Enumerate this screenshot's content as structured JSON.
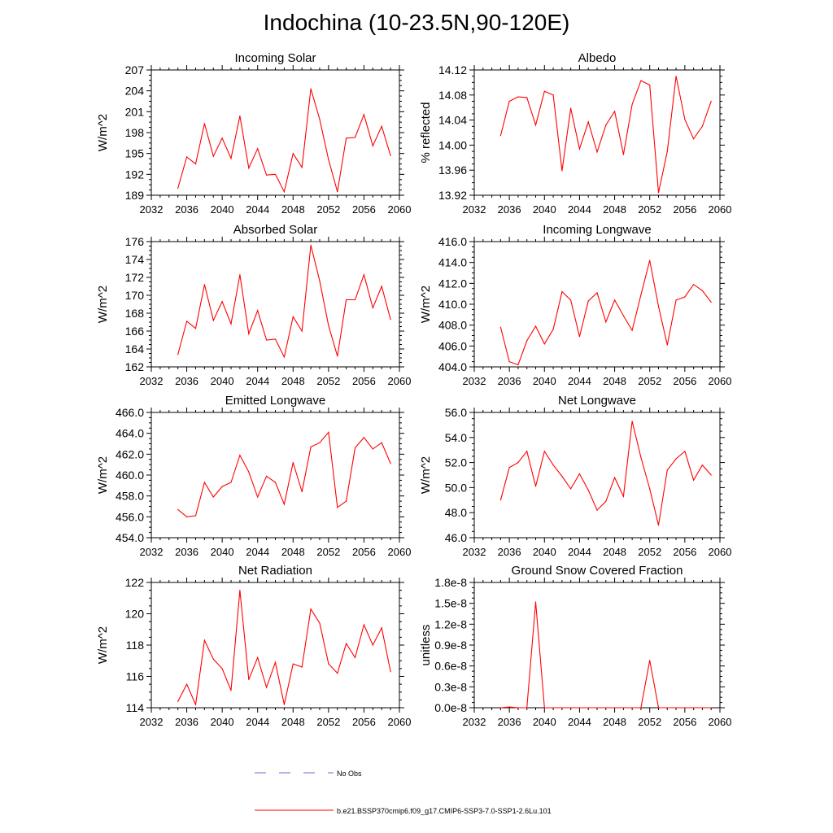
{
  "title": "Indochina (10-23.5N,90-120E)",
  "series_color": "#ff0000",
  "legend": {
    "entries": [
      {
        "label": "No Obs",
        "style": "dashed",
        "color": "#6b6bd0"
      },
      {
        "label": "b.e21.BSSP370cmip6.f09_g17.CMIP6-SSP3-7.0-SSP1-2.6Lu.101",
        "style": "solid",
        "color": "#ff0000"
      }
    ]
  },
  "chart_data": [
    {
      "type": "line",
      "title": "Incoming Solar",
      "ylabel": "W/m^2",
      "xlim": [
        2032,
        2060
      ],
      "ylim": [
        189,
        207
      ],
      "xticks": [
        "2032",
        "2036",
        "2040",
        "2044",
        "2048",
        "2052",
        "2056",
        "2060"
      ],
      "yticks": [
        "189",
        "192",
        "195",
        "198",
        "201",
        "204",
        "207"
      ],
      "x": [
        2035,
        2036,
        2037,
        2038,
        2039,
        2040,
        2041,
        2042,
        2043,
        2044,
        2045,
        2046,
        2047,
        2048,
        2049,
        2050,
        2051,
        2052,
        2053,
        2054,
        2055,
        2056,
        2057,
        2058,
        2059
      ],
      "series": [
        {
          "values": [
            190.0,
            194.5,
            193.5,
            199.3,
            194.6,
            197.2,
            194.3,
            200.4,
            192.9,
            195.7,
            191.9,
            192.0,
            189.5,
            195.0,
            193.0,
            204.3,
            199.9,
            194.1,
            189.5,
            197.2,
            197.3,
            200.6,
            196.1,
            198.9,
            194.7
          ]
        }
      ]
    },
    {
      "type": "line",
      "title": "Albedo",
      "ylabel": "% reflected",
      "xlim": [
        2032,
        2060
      ],
      "ylim": [
        13.92,
        14.12
      ],
      "xticks": [
        "2032",
        "2036",
        "2040",
        "2044",
        "2048",
        "2052",
        "2056",
        "2060"
      ],
      "yticks": [
        "13.92",
        "13.96",
        "14.00",
        "14.04",
        "14.08",
        "14.12"
      ],
      "x": [
        2035,
        2036,
        2037,
        2038,
        2039,
        2040,
        2041,
        2042,
        2043,
        2044,
        2045,
        2046,
        2047,
        2048,
        2049,
        2050,
        2051,
        2052,
        2053,
        2054,
        2055,
        2056,
        2057,
        2058,
        2059
      ],
      "series": [
        {
          "values": [
            14.015,
            14.07,
            14.077,
            14.076,
            14.032,
            14.086,
            14.08,
            13.959,
            14.059,
            13.994,
            14.037,
            13.989,
            14.032,
            14.054,
            13.985,
            14.065,
            14.103,
            14.096,
            13.924,
            13.99,
            14.11,
            14.041,
            14.01,
            14.03,
            14.07
          ]
        }
      ]
    },
    {
      "type": "line",
      "title": "Absorbed Solar",
      "ylabel": "W/m^2",
      "xlim": [
        2032,
        2060
      ],
      "ylim": [
        162,
        176
      ],
      "xticks": [
        "2032",
        "2036",
        "2040",
        "2044",
        "2048",
        "2052",
        "2056",
        "2060"
      ],
      "yticks": [
        "162",
        "164",
        "166",
        "168",
        "170",
        "172",
        "174",
        "176"
      ],
      "x": [
        2035,
        2036,
        2037,
        2038,
        2039,
        2040,
        2041,
        2042,
        2043,
        2044,
        2045,
        2046,
        2047,
        2048,
        2049,
        2050,
        2051,
        2052,
        2053,
        2054,
        2055,
        2056,
        2057,
        2058,
        2059
      ],
      "series": [
        {
          "values": [
            163.4,
            167.1,
            166.3,
            171.2,
            167.2,
            169.3,
            166.8,
            172.3,
            165.7,
            168.3,
            165.0,
            165.1,
            163.1,
            167.6,
            166.0,
            175.6,
            171.6,
            166.6,
            163.2,
            169.5,
            169.5,
            172.3,
            168.6,
            171.0,
            167.3
          ]
        }
      ]
    },
    {
      "type": "line",
      "title": "Incoming Longwave",
      "ylabel": "W/m^2",
      "xlim": [
        2032,
        2060
      ],
      "ylim": [
        404,
        416
      ],
      "xticks": [
        "2032",
        "2036",
        "2040",
        "2044",
        "2048",
        "2052",
        "2056",
        "2060"
      ],
      "yticks": [
        "404.0",
        "406.0",
        "408.0",
        "410.0",
        "412.0",
        "414.0",
        "416.0"
      ],
      "x": [
        2035,
        2036,
        2037,
        2038,
        2039,
        2040,
        2041,
        2042,
        2043,
        2044,
        2045,
        2046,
        2047,
        2048,
        2049,
        2050,
        2051,
        2052,
        2053,
        2054,
        2055,
        2056,
        2057,
        2058,
        2059
      ],
      "series": [
        {
          "values": [
            407.8,
            404.5,
            404.2,
            406.5,
            407.9,
            406.2,
            407.6,
            411.2,
            410.4,
            406.9,
            410.3,
            411.1,
            408.3,
            410.4,
            408.9,
            407.5,
            410.9,
            414.2,
            409.8,
            406.1,
            410.4,
            410.7,
            411.9,
            411.3,
            410.2
          ]
        }
      ]
    },
    {
      "type": "line",
      "title": "Emitted Longwave",
      "ylabel": "W/m^2",
      "xlim": [
        2032,
        2060
      ],
      "ylim": [
        454,
        466
      ],
      "xticks": [
        "2032",
        "2036",
        "2040",
        "2044",
        "2048",
        "2052",
        "2056",
        "2060"
      ],
      "yticks": [
        "454.0",
        "456.0",
        "458.0",
        "460.0",
        "462.0",
        "464.0",
        "466.0"
      ],
      "x": [
        2035,
        2036,
        2037,
        2038,
        2039,
        2040,
        2041,
        2042,
        2043,
        2044,
        2045,
        2046,
        2047,
        2048,
        2049,
        2050,
        2051,
        2052,
        2053,
        2054,
        2055,
        2056,
        2057,
        2058,
        2059
      ],
      "series": [
        {
          "values": [
            456.7,
            456.0,
            456.1,
            459.3,
            457.9,
            458.9,
            459.3,
            461.9,
            460.3,
            457.9,
            459.9,
            459.3,
            457.2,
            461.2,
            458.4,
            462.7,
            463.1,
            464.1,
            456.9,
            457.5,
            462.6,
            463.6,
            462.5,
            463.1,
            461.1
          ]
        }
      ]
    },
    {
      "type": "line",
      "title": "Net Longwave",
      "ylabel": "W/m^2",
      "xlim": [
        2032,
        2060
      ],
      "ylim": [
        46,
        56
      ],
      "xticks": [
        "2032",
        "2036",
        "2040",
        "2044",
        "2048",
        "2052",
        "2056",
        "2060"
      ],
      "yticks": [
        "46.0",
        "48.0",
        "50.0",
        "52.0",
        "54.0",
        "56.0"
      ],
      "x": [
        2035,
        2036,
        2037,
        2038,
        2039,
        2040,
        2041,
        2042,
        2043,
        2044,
        2045,
        2046,
        2047,
        2048,
        2049,
        2050,
        2051,
        2052,
        2053,
        2054,
        2055,
        2056,
        2057,
        2058,
        2059
      ],
      "series": [
        {
          "values": [
            49.0,
            51.6,
            52.0,
            52.9,
            50.1,
            52.9,
            51.8,
            50.9,
            49.9,
            51.1,
            49.8,
            48.2,
            48.9,
            50.8,
            49.3,
            55.3,
            52.4,
            49.9,
            47.0,
            51.4,
            52.3,
            52.9,
            50.6,
            51.8,
            51.0
          ]
        }
      ]
    },
    {
      "type": "line",
      "title": "Net Radiation",
      "ylabel": "W/m^2",
      "xlim": [
        2032,
        2060
      ],
      "ylim": [
        114,
        122
      ],
      "xticks": [
        "2032",
        "2036",
        "2040",
        "2044",
        "2048",
        "2052",
        "2056",
        "2060"
      ],
      "yticks": [
        "114",
        "116",
        "118",
        "120",
        "122"
      ],
      "x": [
        2035,
        2036,
        2037,
        2038,
        2039,
        2040,
        2041,
        2042,
        2043,
        2044,
        2045,
        2046,
        2047,
        2048,
        2049,
        2050,
        2051,
        2052,
        2053,
        2054,
        2055,
        2056,
        2057,
        2058,
        2059
      ],
      "series": [
        {
          "values": [
            114.4,
            115.5,
            114.2,
            118.3,
            117.1,
            116.5,
            115.1,
            121.5,
            115.8,
            117.2,
            115.3,
            116.9,
            114.2,
            116.8,
            116.6,
            120.3,
            119.4,
            116.8,
            116.2,
            118.1,
            117.2,
            119.3,
            118.0,
            119.1,
            116.3
          ]
        }
      ]
    },
    {
      "type": "line",
      "title": "Ground Snow Covered Fraction",
      "ylabel": "unitless",
      "xlim": [
        2032,
        2060
      ],
      "ylim": [
        0,
        1.8e-08
      ],
      "xticks": [
        "2032",
        "2036",
        "2040",
        "2044",
        "2048",
        "2052",
        "2056",
        "2060"
      ],
      "yticks": [
        "0.0e-8",
        "0.3e-8",
        "0.6e-8",
        "0.9e-8",
        "1.2e-8",
        "1.5e-8",
        "1.8e-8"
      ],
      "x": [
        2035,
        2036,
        2037,
        2038,
        2039,
        2040,
        2041,
        2042,
        2043,
        2044,
        2045,
        2046,
        2047,
        2048,
        2049,
        2050,
        2051,
        2052,
        2053,
        2054,
        2055,
        2056,
        2057,
        2058,
        2059
      ],
      "series": [
        {
          "values": [
            0,
            1e-10,
            0,
            0,
            1.52e-08,
            0,
            0,
            0,
            0,
            0,
            0,
            0,
            0,
            0,
            0,
            0,
            0,
            6.8e-09,
            0,
            0,
            0,
            0,
            0,
            0,
            0
          ]
        }
      ]
    }
  ]
}
